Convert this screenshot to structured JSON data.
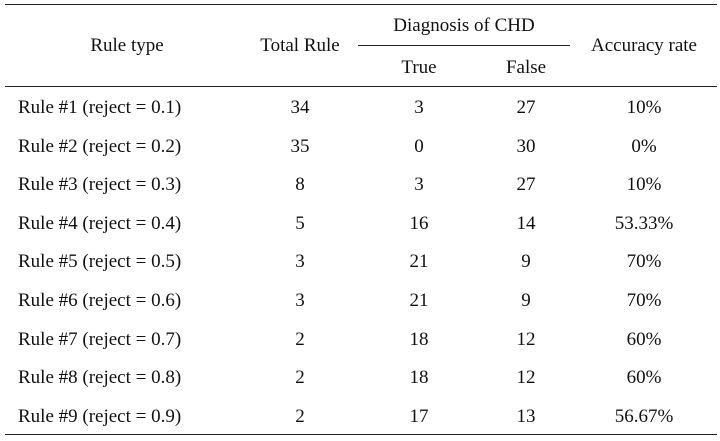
{
  "table": {
    "headers": {
      "rule_type": "Rule type",
      "total_rule": "Total Rule",
      "diagnosis_group": "Diagnosis of CHD",
      "true": "True",
      "false": "False",
      "accuracy_rate": "Accuracy rate"
    },
    "rows": [
      {
        "rule": "Rule #1 (reject = 0.1)",
        "total": "34",
        "true": "3",
        "false": "27",
        "accuracy": "10%"
      },
      {
        "rule": "Rule #2 (reject = 0.2)",
        "total": "35",
        "true": "0",
        "false": "30",
        "accuracy": "0%"
      },
      {
        "rule": "Rule #3 (reject = 0.3)",
        "total": "8",
        "true": "3",
        "false": "27",
        "accuracy": "10%"
      },
      {
        "rule": "Rule #4 (reject = 0.4)",
        "total": "5",
        "true": "16",
        "false": "14",
        "accuracy": "53.33%"
      },
      {
        "rule": "Rule #5 (reject = 0.5)",
        "total": "3",
        "true": "21",
        "false": "9",
        "accuracy": "70%"
      },
      {
        "rule": "Rule #6 (reject = 0.6)",
        "total": "3",
        "true": "21",
        "false": "9",
        "accuracy": "70%"
      },
      {
        "rule": "Rule #7 (reject = 0.7)",
        "total": "2",
        "true": "18",
        "false": "12",
        "accuracy": "60%"
      },
      {
        "rule": "Rule #8 (reject = 0.8)",
        "total": "2",
        "true": "18",
        "false": "12",
        "accuracy": "60%"
      },
      {
        "rule": "Rule #9 (reject = 0.9)",
        "total": "2",
        "true": "17",
        "false": "13",
        "accuracy": "56.67%"
      }
    ]
  }
}
